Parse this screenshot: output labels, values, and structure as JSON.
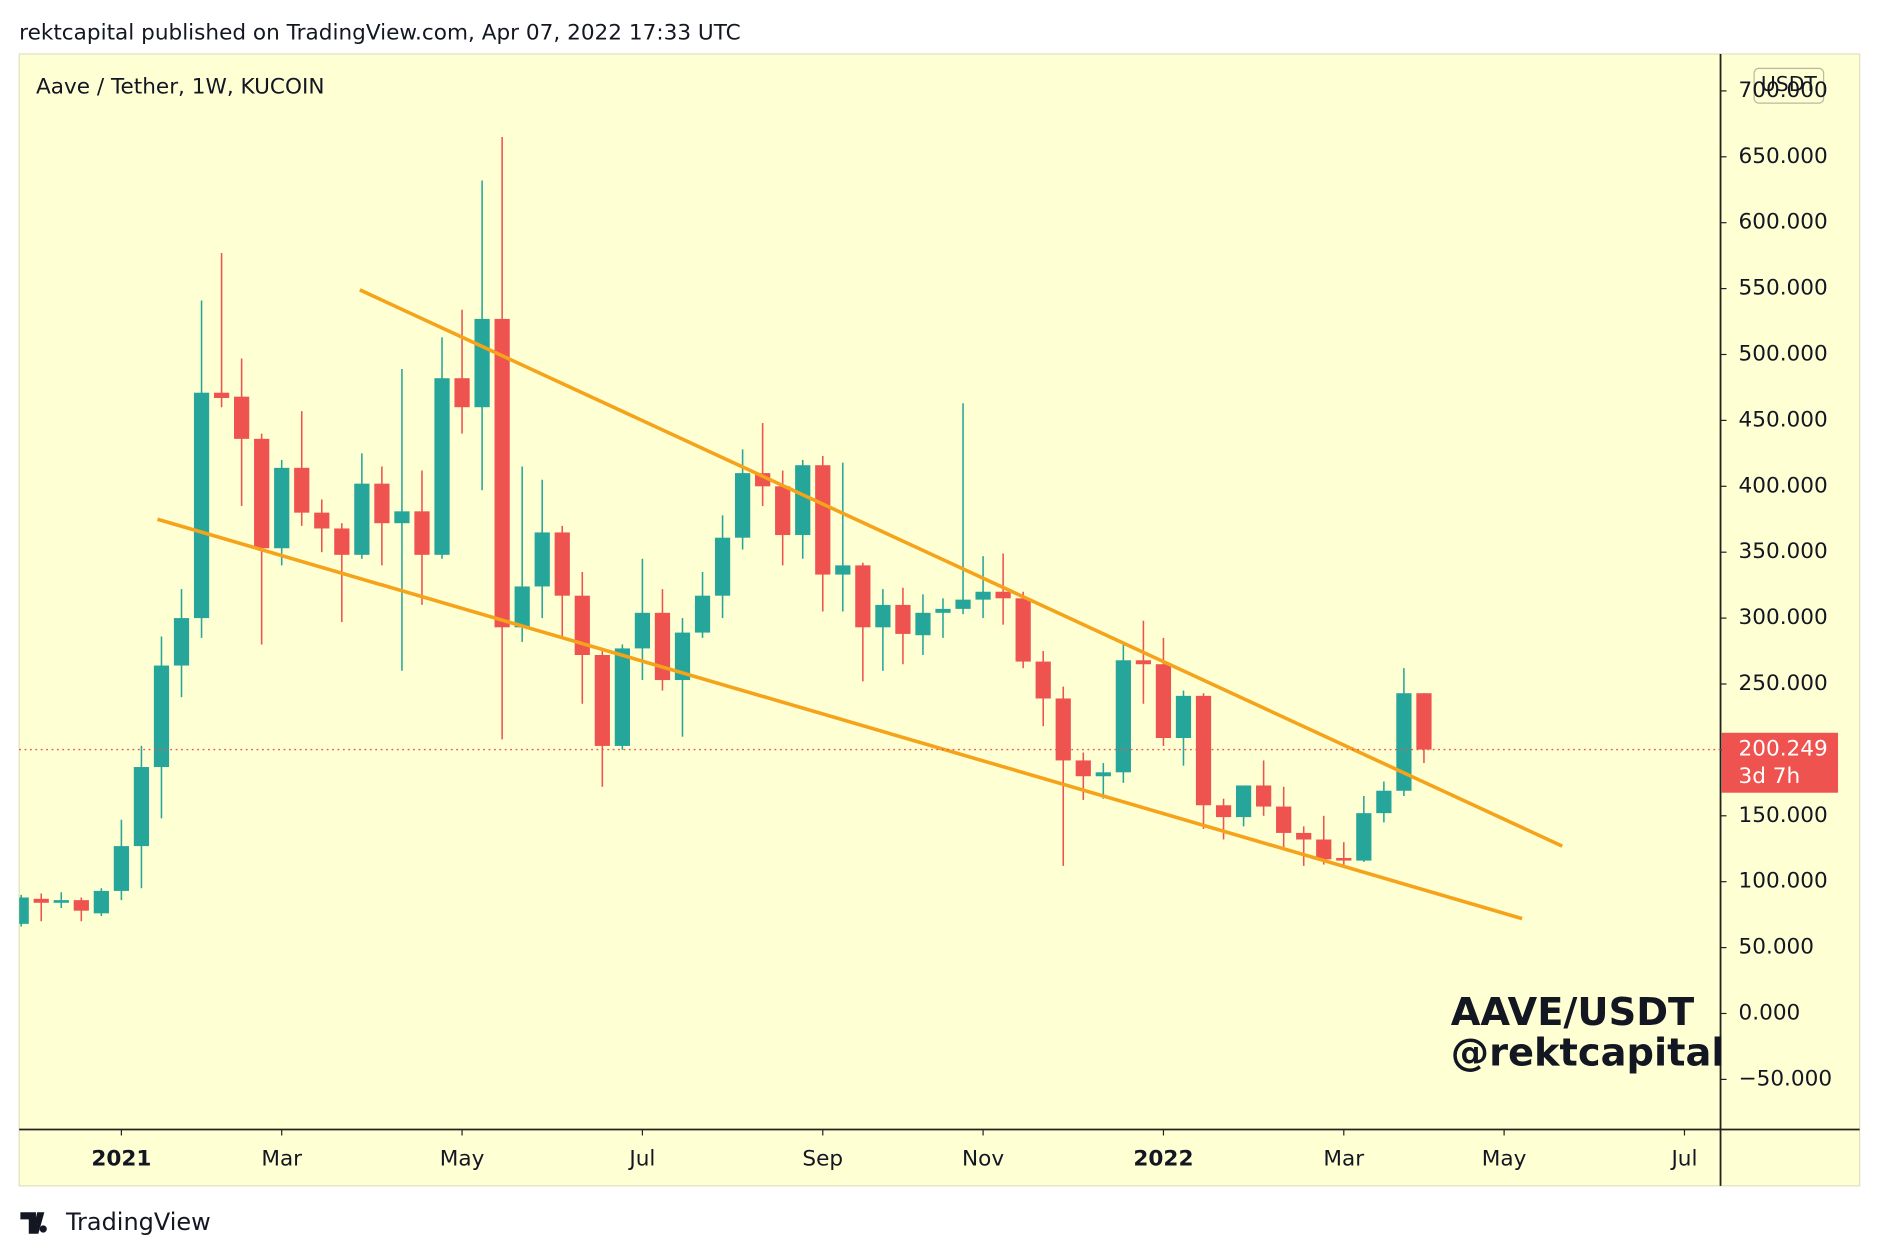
{
  "header": "rektcapital published on TradingView.com, Apr 07, 2022 17:33 UTC",
  "footer": "TradingView",
  "chart_data": {
    "type": "candlestick",
    "title": "Aave / Tether, 1W, KUCOIN",
    "currency": "USDT",
    "countdown": "3d 7h",
    "watermark": [
      "AAVE/USDT",
      "@rektcapital"
    ],
    "up_color": "#26a69a",
    "down_color": "#ef5350",
    "grid": false,
    "categories": [
      null,
      null,
      null,
      null,
      null,
      null,
      null,
      null,
      null,
      null,
      null,
      null,
      null,
      null,
      null,
      null,
      null,
      null,
      null,
      null,
      null,
      null,
      null,
      null,
      null,
      null,
      null,
      null,
      null,
      null,
      null,
      null,
      null,
      null,
      null,
      null,
      null,
      null,
      null,
      null,
      null,
      null,
      null,
      null,
      null,
      null,
      null,
      null,
      null,
      null,
      null,
      null,
      null,
      null,
      null,
      null,
      null,
      null,
      null,
      null,
      null,
      null,
      null,
      null,
      null,
      null,
      null,
      null,
      null,
      null,
      null
    ],
    "open": [
      68,
      87,
      84,
      86,
      76,
      93,
      127,
      187,
      264,
      300,
      471,
      468,
      436,
      353,
      414,
      380,
      368,
      348,
      402,
      372,
      381,
      348,
      482,
      460,
      527,
      293,
      324,
      365,
      317,
      272,
      203,
      277,
      304,
      253,
      289,
      317,
      361,
      410,
      400,
      363,
      416,
      333,
      340,
      293,
      310,
      287,
      304,
      307,
      314,
      320,
      315,
      267,
      239,
      192,
      180,
      183,
      268,
      265,
      209,
      241,
      158,
      149,
      173,
      157,
      137,
      132,
      118,
      116,
      152,
      169,
      243
    ],
    "high": [
      90,
      91,
      92,
      88,
      95,
      147,
      203,
      286,
      322,
      541,
      577,
      497,
      440,
      420,
      457,
      390,
      372,
      425,
      415,
      489,
      412,
      513,
      534,
      632,
      665,
      415,
      405,
      370,
      335,
      275,
      280,
      345,
      322,
      300,
      335,
      378,
      428,
      448,
      412,
      420,
      423,
      418,
      342,
      322,
      323,
      318,
      315,
      463,
      347,
      349,
      320,
      275,
      248,
      198,
      190,
      280,
      298,
      285,
      245,
      243,
      163,
      173,
      192,
      172,
      142,
      150,
      130,
      165,
      176,
      262,
      243
    ],
    "low": [
      66,
      70,
      80,
      70,
      74,
      86,
      95,
      148,
      240,
      285,
      460,
      385,
      280,
      340,
      370,
      350,
      297,
      345,
      340,
      260,
      310,
      345,
      440,
      397,
      208,
      282,
      300,
      285,
      235,
      172,
      200,
      253,
      245,
      210,
      285,
      300,
      352,
      385,
      340,
      345,
      305,
      305,
      252,
      260,
      265,
      272,
      285,
      303,
      300,
      295,
      262,
      218,
      112,
      162,
      163,
      175,
      235,
      203,
      188,
      140,
      132,
      142,
      150,
      125,
      112,
      113,
      112,
      115,
      145,
      165,
      190
    ],
    "close": [
      88,
      84,
      86,
      78,
      93,
      127,
      187,
      264,
      300,
      471,
      467,
      436,
      353,
      414,
      380,
      368,
      348,
      402,
      372,
      381,
      348,
      482,
      460,
      527,
      293,
      324,
      365,
      317,
      272,
      203,
      277,
      304,
      253,
      289,
      317,
      361,
      410,
      400,
      363,
      416,
      333,
      340,
      293,
      310,
      288,
      304,
      307,
      314,
      320,
      315,
      267,
      239,
      192,
      180,
      183,
      268,
      265,
      209,
      241,
      158,
      149,
      173,
      157,
      137,
      132,
      117,
      116,
      152,
      169,
      243,
      200.249
    ],
    "xlim": [
      -0.1,
      84.8
    ],
    "xticks": [
      {
        "value": 5,
        "label": "2021"
      },
      {
        "value": 13,
        "label": "Mar"
      },
      {
        "value": 22,
        "label": "May"
      },
      {
        "value": 31,
        "label": "Jul"
      },
      {
        "value": 40,
        "label": "Sep"
      },
      {
        "value": 48,
        "label": "Nov"
      },
      {
        "value": 57,
        "label": "2022"
      },
      {
        "value": 66,
        "label": "Mar"
      },
      {
        "value": 74,
        "label": "May"
      },
      {
        "value": 83,
        "label": "Jul"
      }
    ],
    "ylim": [
      -88,
      728
    ],
    "yticks": [
      {
        "value": -50,
        "label": "−50.000"
      },
      {
        "value": 0,
        "label": "0.000"
      },
      {
        "value": 50,
        "label": "50.000"
      },
      {
        "value": 100,
        "label": "100.000"
      },
      {
        "value": 150,
        "label": "150.000"
      },
      {
        "value": 200,
        "label": "200.000"
      },
      {
        "value": 250,
        "label": "250.000"
      },
      {
        "value": 300,
        "label": "300.000"
      },
      {
        "value": 350,
        "label": "350.000"
      },
      {
        "value": 400,
        "label": "400.000"
      },
      {
        "value": 450,
        "label": "450.000"
      },
      {
        "value": 500,
        "label": "500.000"
      },
      {
        "value": 550,
        "label": "550.000"
      },
      {
        "value": 600,
        "label": "600.000"
      },
      {
        "value": 650,
        "label": "650.000"
      },
      {
        "value": 700,
        "label": "700.000"
      }
    ],
    "trendlines": [
      {
        "color": "#f5a31a",
        "x": [
          16.9,
          76.9
        ],
        "y": [
          549,
          127
        ]
      },
      {
        "color": "#f5a31a",
        "x": [
          6.8,
          74.9
        ],
        "y": [
          375,
          72
        ]
      }
    ]
  }
}
